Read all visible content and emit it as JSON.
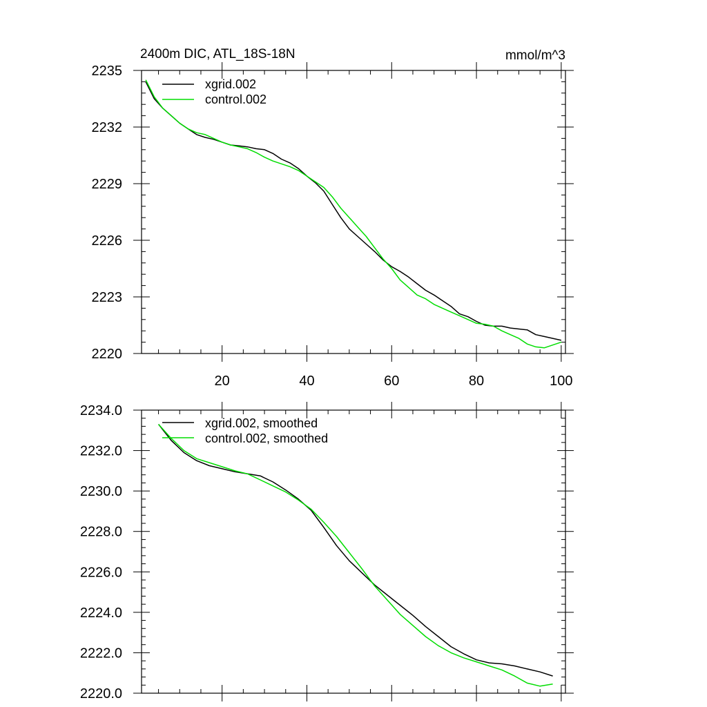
{
  "chart_data": [
    {
      "type": "line",
      "title": "2400m DIC, ATL_18S-18N",
      "units": "mmol/m^3",
      "xlim": [
        1,
        101
      ],
      "ylim": [
        2220,
        2235
      ],
      "xticks": [
        20,
        40,
        60,
        80,
        100
      ],
      "yticks": [
        2220,
        2223,
        2226,
        2229,
        2232,
        2235
      ],
      "ytick_labels": [
        "2220",
        "2223",
        "2226",
        "2229",
        "2232",
        "2235"
      ],
      "legend_position": "top-left",
      "series": [
        {
          "name": "xgrid.002",
          "color": "#000000",
          "x": [
            2,
            4,
            6,
            8,
            10,
            12,
            14,
            16,
            18,
            20,
            22,
            24,
            26,
            28,
            30,
            32,
            34,
            36,
            38,
            40,
            42,
            44,
            46,
            48,
            50,
            52,
            54,
            56,
            58,
            60,
            62,
            64,
            66,
            68,
            70,
            72,
            74,
            76,
            78,
            80,
            82,
            84,
            86,
            88,
            90,
            92,
            94,
            96,
            98,
            100
          ],
          "y": [
            2234.4,
            2233.5,
            2233.0,
            2232.6,
            2232.2,
            2231.9,
            2231.6,
            2231.45,
            2231.35,
            2231.2,
            2231.05,
            2231.0,
            2230.95,
            2230.85,
            2230.8,
            2230.6,
            2230.3,
            2230.1,
            2229.8,
            2229.4,
            2229.05,
            2228.6,
            2227.9,
            2227.2,
            2226.6,
            2226.2,
            2225.8,
            2225.4,
            2224.95,
            2224.6,
            2224.35,
            2224.05,
            2223.7,
            2223.35,
            2223.1,
            2222.8,
            2222.5,
            2222.1,
            2221.95,
            2221.7,
            2221.5,
            2221.45,
            2221.45,
            2221.35,
            2221.3,
            2221.25,
            2221.0,
            2220.9,
            2220.8,
            2220.7
          ]
        },
        {
          "name": "control.002",
          "color": "#00dd00",
          "x": [
            2,
            4,
            6,
            8,
            10,
            12,
            14,
            16,
            18,
            20,
            22,
            24,
            26,
            28,
            30,
            32,
            34,
            36,
            38,
            40,
            42,
            44,
            46,
            48,
            50,
            52,
            54,
            56,
            58,
            60,
            62,
            64,
            66,
            68,
            70,
            72,
            74,
            76,
            78,
            80,
            82,
            84,
            86,
            88,
            90,
            92,
            94,
            96,
            98,
            100
          ],
          "y": [
            2234.5,
            2233.6,
            2233.0,
            2232.6,
            2232.2,
            2231.9,
            2231.7,
            2231.6,
            2231.4,
            2231.2,
            2231.05,
            2230.95,
            2230.85,
            2230.65,
            2230.4,
            2230.2,
            2230.05,
            2229.9,
            2229.7,
            2229.4,
            2229.1,
            2228.8,
            2228.3,
            2227.7,
            2227.2,
            2226.7,
            2226.2,
            2225.6,
            2225.0,
            2224.5,
            2223.9,
            2223.5,
            2223.1,
            2222.9,
            2222.6,
            2222.4,
            2222.2,
            2222.0,
            2221.8,
            2221.6,
            2221.55,
            2221.45,
            2221.2,
            2221.0,
            2220.8,
            2220.5,
            2220.35,
            2220.3,
            2220.45,
            2220.6
          ]
        }
      ]
    },
    {
      "type": "line",
      "title": "",
      "xlim": [
        1,
        101
      ],
      "ylim": [
        2220.0,
        2234.0
      ],
      "xticks": [
        20,
        40,
        60,
        80,
        100
      ],
      "yticks": [
        2220.0,
        2222.0,
        2224.0,
        2226.0,
        2228.0,
        2230.0,
        2232.0,
        2234.0
      ],
      "ytick_labels": [
        "2220.0",
        "2222.0",
        "2224.0",
        "2226.0",
        "2228.0",
        "2230.0",
        "2232.0",
        "2234.0"
      ],
      "legend_position": "top-left",
      "series": [
        {
          "name": "xgrid.002, smoothed",
          "color": "#000000",
          "x": [
            5,
            8,
            11,
            14,
            17,
            20,
            23,
            26,
            29,
            32,
            35,
            38,
            41,
            44,
            47,
            50,
            53,
            56,
            59,
            62,
            65,
            68,
            71,
            74,
            77,
            80,
            83,
            86,
            89,
            92,
            95,
            98
          ],
          "y": [
            2233.3,
            2232.5,
            2231.9,
            2231.5,
            2231.25,
            2231.1,
            2230.95,
            2230.85,
            2230.75,
            2230.45,
            2230.05,
            2229.6,
            2229.05,
            2228.2,
            2227.3,
            2226.55,
            2225.95,
            2225.35,
            2224.85,
            2224.35,
            2223.85,
            2223.3,
            2222.8,
            2222.3,
            2221.95,
            2221.65,
            2221.5,
            2221.45,
            2221.35,
            2221.2,
            2221.05,
            2220.85
          ]
        },
        {
          "name": "control.002, smoothed",
          "color": "#00dd00",
          "x": [
            5,
            8,
            11,
            14,
            17,
            20,
            23,
            26,
            29,
            32,
            35,
            38,
            41,
            44,
            47,
            50,
            53,
            56,
            59,
            62,
            65,
            68,
            71,
            74,
            77,
            80,
            83,
            86,
            89,
            92,
            95,
            98
          ],
          "y": [
            2233.3,
            2232.6,
            2232.0,
            2231.6,
            2231.4,
            2231.2,
            2231.0,
            2230.85,
            2230.55,
            2230.25,
            2229.95,
            2229.55,
            2229.1,
            2228.45,
            2227.75,
            2226.95,
            2226.15,
            2225.3,
            2224.6,
            2223.9,
            2223.35,
            2222.8,
            2222.35,
            2222.0,
            2221.75,
            2221.55,
            2221.35,
            2221.15,
            2220.85,
            2220.5,
            2220.35,
            2220.45
          ]
        }
      ]
    }
  ]
}
